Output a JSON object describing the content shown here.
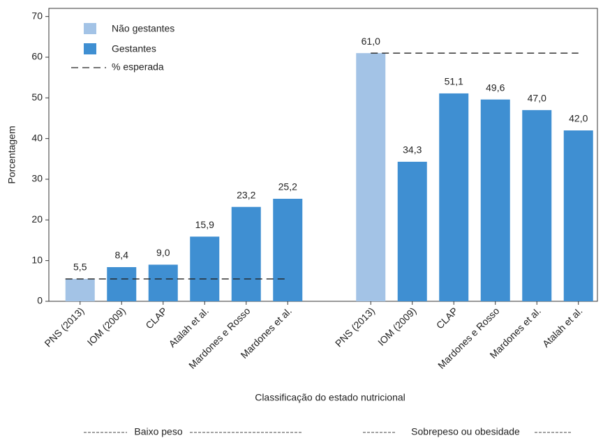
{
  "chart_data": {
    "type": "bar",
    "x_label": "Classificação do estado nutricional",
    "y_label": "Porcentagem",
    "groups": [
      {
        "label": "Baixo peso",
        "categories": [
          "PNS (2013)",
          "IOM (2009)",
          "CLAP",
          "Atalah et al.",
          "Mardones e Rosso",
          "Mardones et al."
        ],
        "expected": 5.5
      },
      {
        "label": "Sobrepeso ou obesidade",
        "categories": [
          "PNS (2013)",
          "IOM (2009)",
          "CLAP",
          "Mardones e Rosso",
          "Mardones et al.",
          "Atalah et al."
        ],
        "expected": 61.0
      }
    ],
    "expected_name": "% esperada",
    "series": [
      {
        "name": "Não gestantes",
        "color": "#a3c3e6",
        "values": [
          5.5,
          null,
          null,
          null,
          null,
          null,
          61.0,
          null,
          null,
          null,
          null,
          null
        ],
        "value_labels": [
          "5,5",
          null,
          null,
          null,
          null,
          null,
          "61,0",
          null,
          null,
          null,
          null,
          null
        ]
      },
      {
        "name": "Gestantes",
        "color": "#3f8fd2",
        "values": [
          null,
          8.4,
          9.0,
          15.9,
          23.2,
          25.2,
          null,
          34.3,
          51.1,
          49.6,
          47.0,
          42.0
        ],
        "value_labels": [
          null,
          "8,4",
          "9,0",
          "15,9",
          "23,2",
          "25,2",
          null,
          "34,3",
          "51,1",
          "49,6",
          "47,0",
          "42,0"
        ]
      }
    ],
    "ylim": [
      0,
      72
    ],
    "yticks": [
      0,
      10,
      20,
      30,
      40,
      50,
      60,
      70
    ]
  }
}
